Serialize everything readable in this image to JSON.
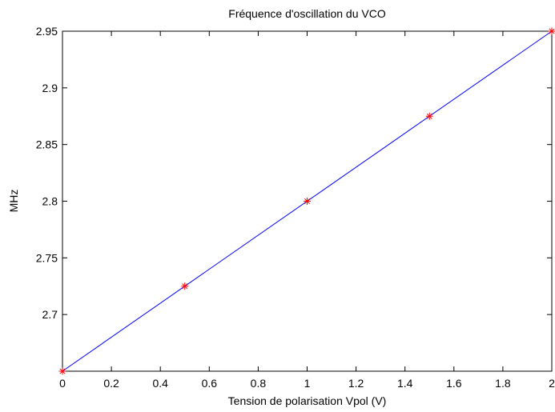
{
  "chart_data": {
    "type": "line",
    "title": "Fréquence d'oscillation du VCO",
    "xlabel": "Tension de polarisation Vpol (V)",
    "ylabel": "MHz",
    "xlim": [
      0,
      2
    ],
    "ylim": [
      2.65,
      2.95
    ],
    "x_ticks": [
      0,
      0.2,
      0.4,
      0.6,
      0.8,
      1,
      1.2,
      1.4,
      1.6,
      1.8,
      2
    ],
    "x_tick_labels": [
      "0",
      "0.2",
      "0.4",
      "0.6",
      "0.8",
      "1",
      "1.2",
      "1.4",
      "1.6",
      "1.8",
      "2"
    ],
    "y_ticks": [
      2.7,
      2.75,
      2.8,
      2.85,
      2.9,
      2.95
    ],
    "y_tick_labels": [
      "2.7",
      "2.75",
      "2.8",
      "2.85",
      "2.9",
      "2.95"
    ],
    "grid": false,
    "series": [
      {
        "style": "line",
        "color": "#0000ff",
        "x": [
          0,
          2
        ],
        "y": [
          2.65,
          2.95
        ]
      },
      {
        "style": "markers",
        "marker": "asterisk",
        "color": "#ff0000",
        "x": [
          0,
          0.5,
          1,
          1.5,
          2
        ],
        "y": [
          2.65,
          2.725,
          2.8,
          2.875,
          2.95
        ]
      }
    ]
  }
}
